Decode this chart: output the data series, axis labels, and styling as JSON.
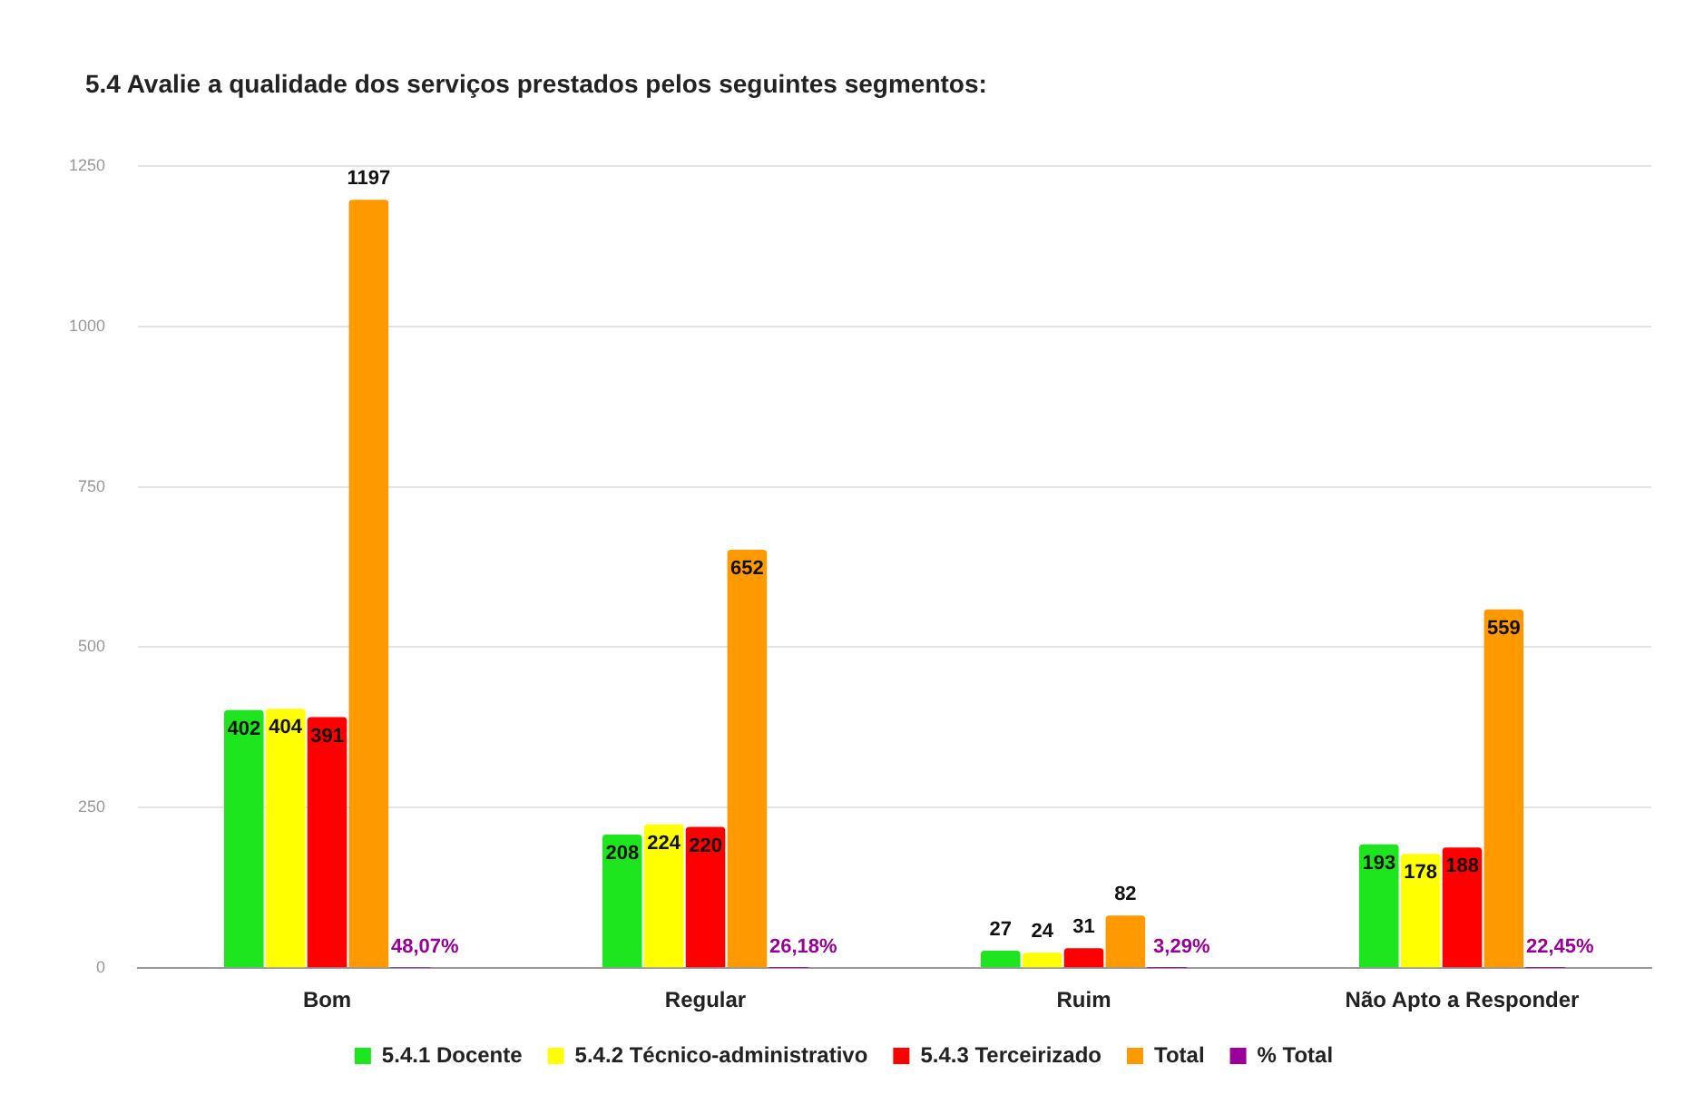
{
  "chart_data": {
    "type": "bar",
    "title": "5.4 Avalie a qualidade dos serviços prestados pelos seguintes segmentos:",
    "categories": [
      "Bom",
      "Regular",
      "Ruim",
      "Não Apto a Responder"
    ],
    "series": [
      {
        "name": "5.4.1 Docente",
        "color": "#1ee61e",
        "values": [
          402,
          208,
          27,
          193
        ],
        "value_labels": [
          "402",
          "208",
          "27",
          "193"
        ]
      },
      {
        "name": "5.4.2 Técnico-administrativo",
        "color": "#ffff00",
        "values": [
          404,
          224,
          24,
          178
        ],
        "value_labels": [
          "404",
          "224",
          "24",
          "178"
        ]
      },
      {
        "name": "5.4.3 Terceirizado",
        "color": "#ff0000",
        "values": [
          391,
          220,
          31,
          188
        ],
        "value_labels": [
          "391",
          "220",
          "31",
          "188"
        ]
      },
      {
        "name": "Total",
        "color": "#ff9900",
        "values": [
          1197,
          652,
          82,
          559
        ],
        "value_labels": [
          "1197",
          "652",
          "82",
          "559"
        ]
      },
      {
        "name": "% Total",
        "color": "#990099",
        "values": [
          0.4807,
          0.2618,
          0.0329,
          0.2245
        ],
        "value_labels": [
          "48,07%",
          "26,18%",
          "3,29%",
          "22,45%"
        ]
      }
    ],
    "ylim": [
      0,
      1250
    ],
    "yticks": [
      0,
      250,
      500,
      750,
      1000,
      1250
    ],
    "grid": "y",
    "legend": "bottom"
  }
}
